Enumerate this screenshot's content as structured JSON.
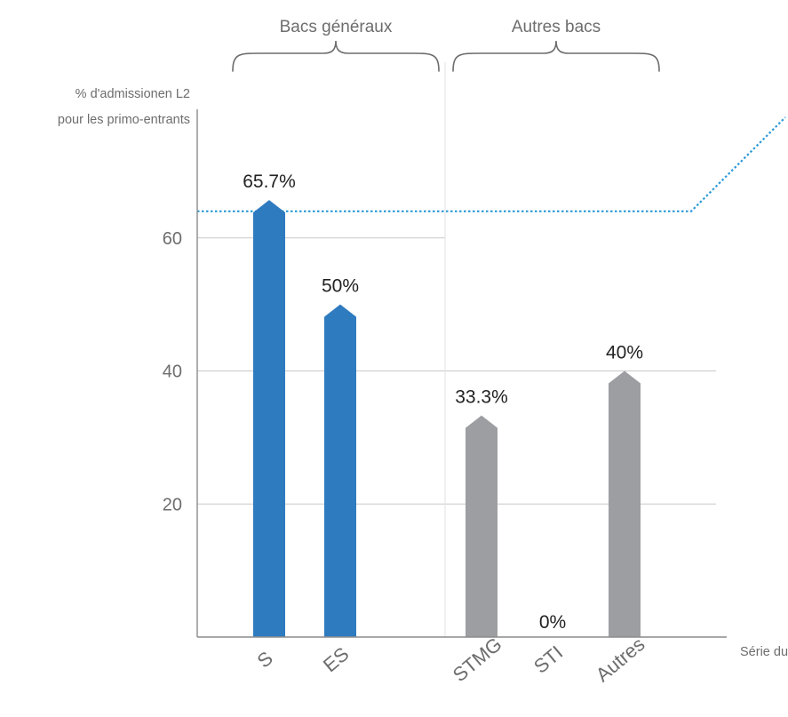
{
  "chart_data": {
    "type": "bar",
    "categories": [
      "S",
      "ES",
      "STMG",
      "STI",
      "Autres"
    ],
    "values": [
      65.7,
      50,
      33.3,
      0,
      40
    ],
    "value_labels": [
      "65.7%",
      "50%",
      "33.3%",
      "0%",
      "40%"
    ],
    "groups": [
      {
        "label": "Bacs généraux",
        "categories": [
          "S",
          "ES"
        ],
        "color": "#2e7bbf"
      },
      {
        "label": "Autres bacs",
        "categories": [
          "STMG",
          "STI",
          "Autres"
        ],
        "color": "#9d9ea2"
      }
    ],
    "ylabel_line1": "% d'admissionen L2",
    "ylabel_line2": "pour les primo-entrants",
    "xlabel": "Série du bac",
    "yticks": [
      20,
      40,
      60
    ],
    "ylim": [
      0,
      80
    ],
    "reference_line": {
      "value": 64,
      "style": "dotted",
      "color": "#2a9ad6"
    },
    "grid": "horizontal",
    "colors": {
      "bacs_generaux": "#2e7bbf",
      "autres_bacs": "#9d9ea2",
      "axis": "#8c8c8c",
      "grid": "#c8c8c8",
      "text": "#222222",
      "muted_text": "#6d6d6d"
    }
  }
}
